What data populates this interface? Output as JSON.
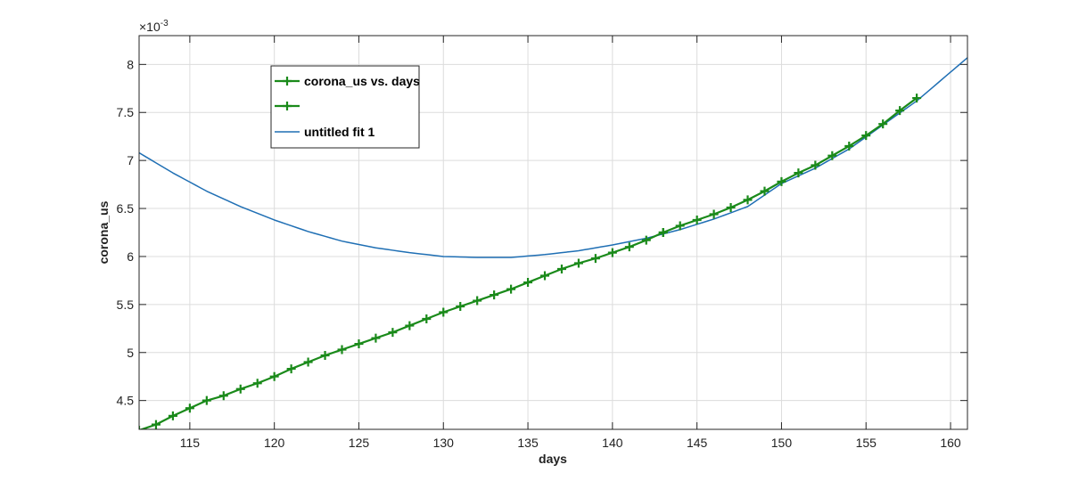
{
  "chart_data": {
    "type": "line",
    "xlabel": "days",
    "ylabel": "corona_us",
    "y_exponent_label": "×10",
    "y_exponent_power": "-3",
    "xlim": [
      112,
      161
    ],
    "ylim": [
      4.2,
      8.3
    ],
    "x_ticks": [
      115,
      120,
      125,
      130,
      135,
      140,
      145,
      150,
      155,
      160
    ],
    "x_tick_labels": [
      "115",
      "120",
      "125",
      "130",
      "135",
      "140",
      "145",
      "150",
      "155",
      "160"
    ],
    "y_ticks": [
      4.5,
      5,
      5.5,
      6,
      6.5,
      7,
      7.5,
      8
    ],
    "y_tick_labels": [
      "4.5",
      "5",
      "5.5",
      "6",
      "6.5",
      "7",
      "7.5",
      "8"
    ],
    "grid": true,
    "legend_position": "top-left",
    "series": [
      {
        "name": "corona_us vs. days",
        "style": "line-with-plus-markers",
        "color": "#1a8a1a",
        "x": [
          112,
          113,
          114,
          115,
          116,
          117,
          118,
          119,
          120,
          121,
          122,
          123,
          124,
          125,
          126,
          127,
          128,
          129,
          130,
          131,
          132,
          133,
          134,
          135,
          136,
          137,
          138,
          139,
          140,
          141,
          142,
          143
        ],
        "y": [
          4.19,
          4.25,
          4.34,
          4.42,
          4.5,
          4.55,
          4.62,
          4.68,
          4.75,
          4.83,
          4.9,
          4.97,
          5.03,
          5.09,
          5.15,
          5.21,
          5.28,
          5.35,
          5.42,
          5.48,
          5.54,
          5.6,
          5.66,
          5.73,
          5.8,
          5.87,
          5.93,
          5.98,
          6.04,
          6.1,
          6.17,
          6.25
        ]
      },
      {
        "name": "",
        "style": "line-with-plus-markers",
        "color": "#1a8a1a",
        "x": [
          143,
          144,
          145,
          146,
          147,
          148,
          149,
          150,
          151,
          152,
          153,
          154,
          155,
          156,
          157,
          158
        ],
        "y": [
          6.25,
          6.32,
          6.38,
          6.44,
          6.51,
          6.59,
          6.68,
          6.78,
          6.87,
          6.95,
          7.05,
          7.15,
          7.26,
          7.38,
          7.52,
          7.65
        ]
      },
      {
        "name": "untitled fit 1",
        "style": "line",
        "color": "#1f6fb4",
        "x": [
          112,
          114,
          116,
          118,
          120,
          122,
          124,
          126,
          128,
          130,
          132,
          132.5,
          134,
          136,
          138,
          140,
          142,
          144,
          146,
          148,
          150,
          152,
          154,
          156,
          158,
          160,
          161
        ],
        "y": [
          7.08,
          6.87,
          6.68,
          6.52,
          6.38,
          6.26,
          6.16,
          6.09,
          6.04,
          6.0,
          5.99,
          5.99,
          5.99,
          6.02,
          6.06,
          6.12,
          6.19,
          6.28,
          6.39,
          6.52,
          6.76,
          6.92,
          7.12,
          7.37,
          7.62,
          7.92,
          8.07
        ]
      }
    ]
  }
}
